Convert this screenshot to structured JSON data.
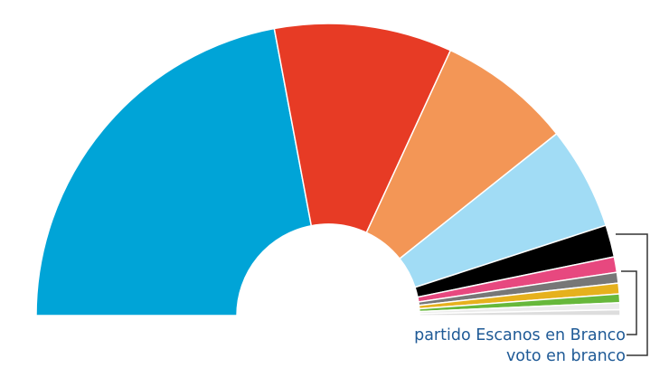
{
  "chart_data": {
    "type": "pie",
    "shape": "semicircle-donut",
    "series": [
      {
        "color": "#00a4d7",
        "value": 41.0
      },
      {
        "color": "#e73b25",
        "value": 18.3
      },
      {
        "color": "#f39656",
        "value": 13.8
      },
      {
        "color": "#a1dcf5",
        "value": 10.6
      },
      {
        "color": "#000000",
        "value": 3.3
      },
      {
        "color": "#e7487f",
        "value": 1.6
      },
      {
        "color": "#777777",
        "value": 1.1
      },
      {
        "color": "#e6b11d",
        "value": 1.1
      },
      {
        "color": "#67b83b",
        "value": 0.9
      },
      {
        "color": "#ececec",
        "value": 0.7
      },
      {
        "color": "#dddddd",
        "value": 0.6
      }
    ],
    "annotations": [
      {
        "text": "partido Escanos en Branco",
        "color": "#1f5a96"
      },
      {
        "text": "voto en branco",
        "color": "#1f5a96"
      }
    ]
  }
}
